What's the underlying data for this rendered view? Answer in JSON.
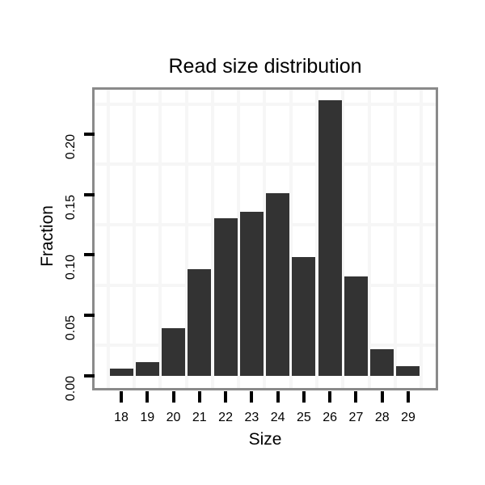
{
  "chart": {
    "title": "Read size distribution",
    "xlabel": "Size",
    "ylabel": "Fraction"
  },
  "chart_data": {
    "type": "bar",
    "title": "Read size distribution",
    "xlabel": "Size",
    "ylabel": "Fraction",
    "categories": [
      "18",
      "19",
      "20",
      "21",
      "22",
      "23",
      "24",
      "25",
      "26",
      "27",
      "28",
      "29"
    ],
    "values": [
      0.006,
      0.011,
      0.039,
      0.088,
      0.13,
      0.136,
      0.151,
      0.098,
      0.228,
      0.082,
      0.022,
      0.008
    ],
    "ylim": [
      0,
      0.237
    ],
    "y_ticks": [
      {
        "value": 0.0,
        "label": "0.00"
      },
      {
        "value": 0.05,
        "label": "0.05"
      },
      {
        "value": 0.1,
        "label": "0.10"
      },
      {
        "value": 0.15,
        "label": "0.15"
      },
      {
        "value": 0.2,
        "label": "0.20"
      }
    ],
    "y_minor_gridlines": [
      0.025,
      0.075,
      0.125,
      0.175,
      0.225
    ],
    "grid": "minor-only",
    "legend": "none",
    "colors": {
      "bar": "#333333",
      "grid": "#f6f6f6",
      "panel_border": "#8a8a8a",
      "tick": "#000000",
      "text": "#000000",
      "background": "#ffffff"
    }
  }
}
